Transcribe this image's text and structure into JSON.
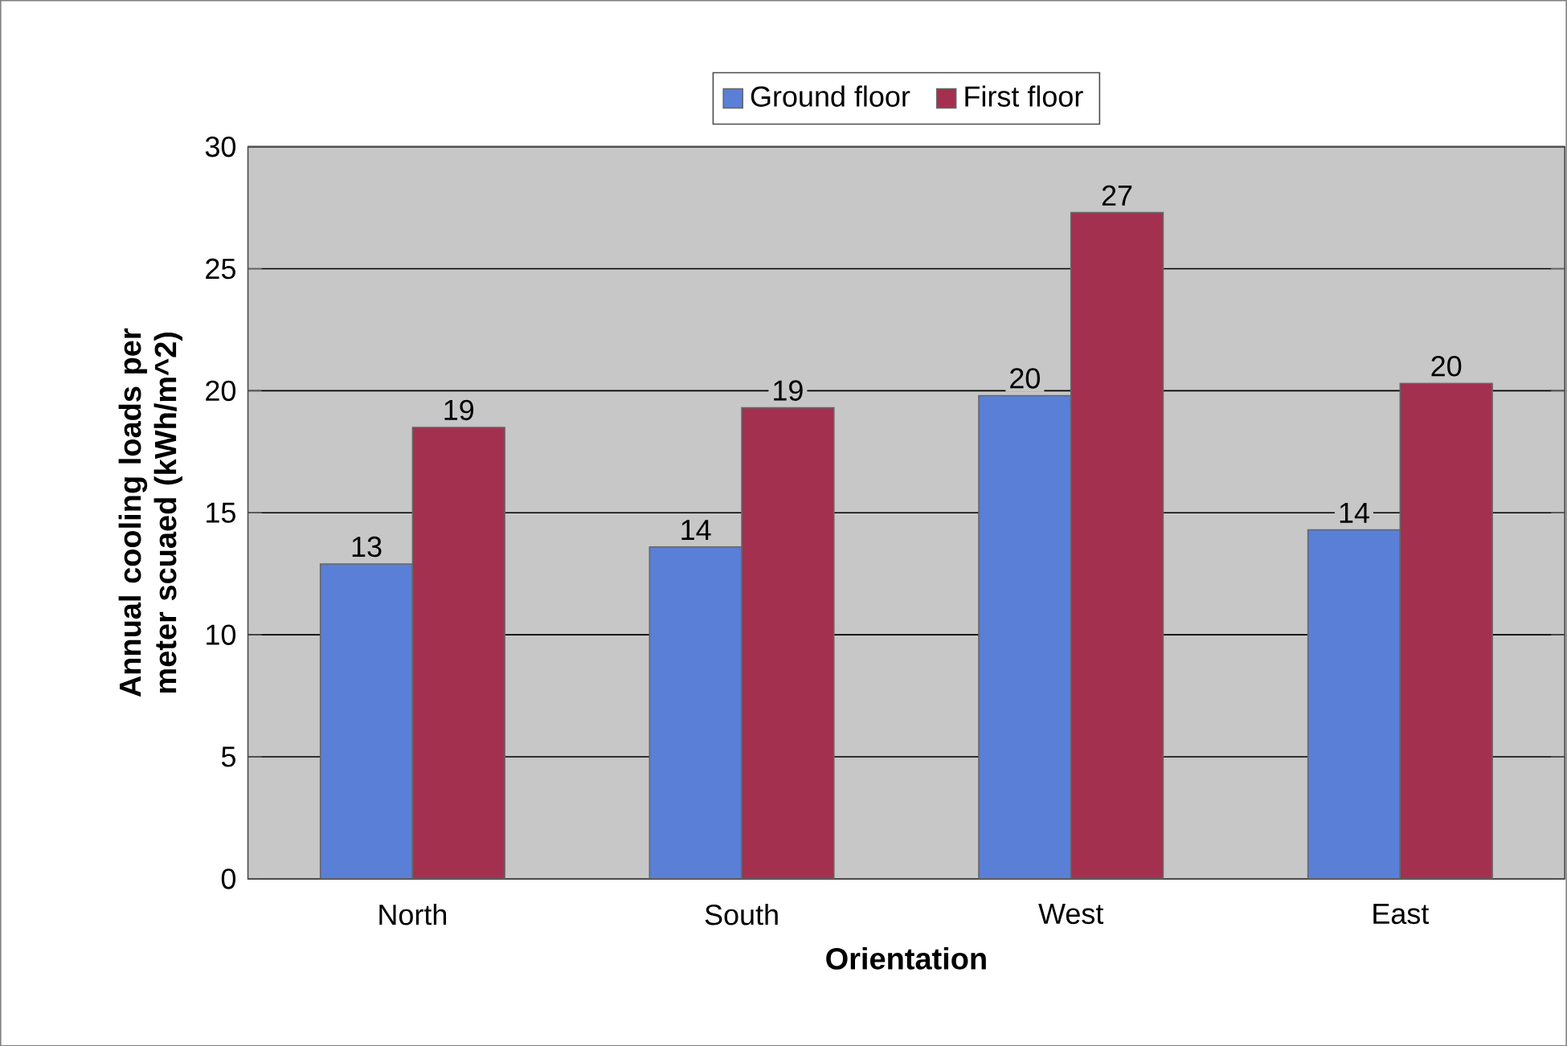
{
  "chart_data": {
    "type": "bar",
    "xlabel": "Orientation",
    "ylabel": "Annual cooling loads per meter scuaed (kWh/m^2)",
    "categories": [
      "North",
      "South",
      "West",
      "East"
    ],
    "series": [
      {
        "name": "Ground floor",
        "color": "#5a7fd6",
        "values": [
          12.9,
          13.6,
          19.8,
          14.3
        ],
        "value_labels": [
          "13",
          "14",
          "20",
          "14"
        ]
      },
      {
        "name": "First floor",
        "color": "#a3304f",
        "values": [
          18.5,
          19.3,
          27.3,
          20.3
        ],
        "value_labels": [
          "19",
          "19",
          "27",
          "20"
        ]
      }
    ],
    "ylim": [
      0,
      30
    ],
    "yticks": [
      0,
      5,
      10,
      15,
      20,
      25,
      30
    ],
    "grid": "y",
    "legend": "top"
  }
}
